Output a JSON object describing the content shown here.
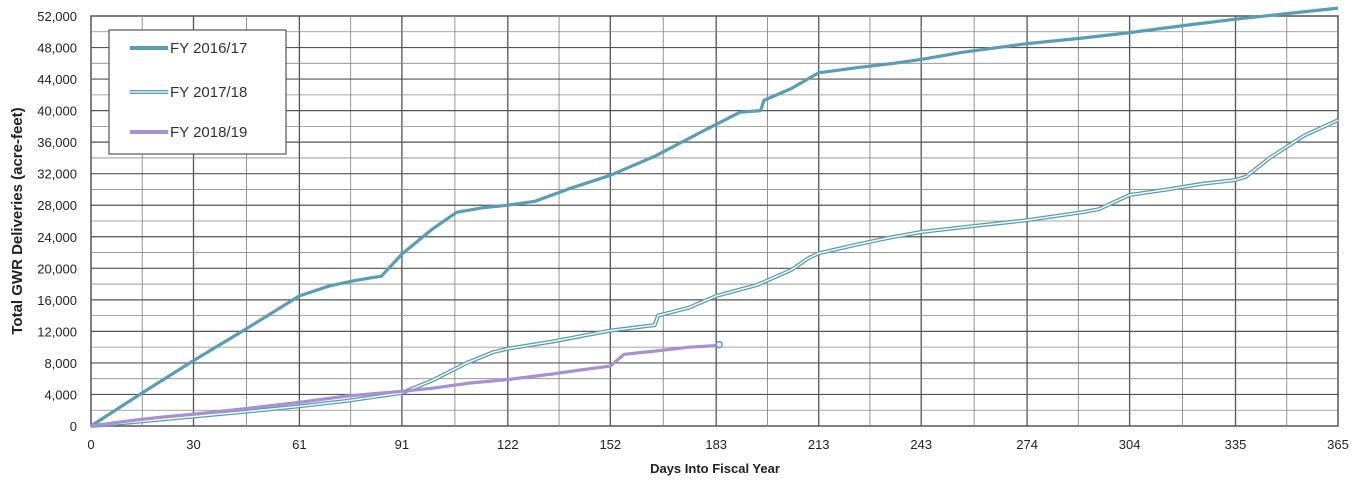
{
  "chart_data": {
    "type": "line",
    "xlabel": "Days Into Fiscal Year",
    "ylabel": "Total GWR Deliveries (acre-feet)",
    "x_ticks": [
      0,
      30,
      61,
      91,
      122,
      152,
      183,
      213,
      243,
      274,
      304,
      335,
      365
    ],
    "y_ticks": [
      0,
      4000,
      8000,
      12000,
      16000,
      20000,
      24000,
      28000,
      32000,
      36000,
      40000,
      44000,
      48000,
      52000
    ],
    "y_tick_labels": [
      "0",
      "4,000",
      "8,000",
      "12,000",
      "16,000",
      "20,000",
      "24,000",
      "28,000",
      "32,000",
      "36,000",
      "40,000",
      "44,000",
      "48,000",
      "52,000"
    ],
    "xlim": [
      0,
      365
    ],
    "ylim": [
      0,
      52000
    ],
    "grid": true,
    "legend_placement": "top-left",
    "series": [
      {
        "name": "FY 2016/17",
        "color": "#5b9db3",
        "style": "solid",
        "x": [
          0,
          15,
          30,
          45,
          61,
          70,
          78,
          85,
          91,
          100,
          107,
          115,
          122,
          130,
          140,
          152,
          165,
          180,
          190,
          196,
          197,
          205,
          213,
          225,
          235,
          243,
          255,
          274,
          290,
          304,
          320,
          335,
          350,
          365
        ],
        "y": [
          0,
          4200,
          8300,
          12200,
          16500,
          17800,
          18500,
          19000,
          21800,
          25000,
          27100,
          27700,
          28000,
          28500,
          30100,
          31800,
          34200,
          37600,
          39800,
          40000,
          41300,
          42800,
          44800,
          45500,
          46000,
          46500,
          47400,
          48500,
          49200,
          49900,
          50800,
          51600,
          52300,
          53000
        ]
      },
      {
        "name": "FY 2017/18",
        "color": "#5b9db3",
        "style": "double",
        "x": [
          0,
          15,
          30,
          45,
          61,
          75,
          91,
          100,
          110,
          118,
          122,
          135,
          152,
          165,
          166,
          175,
          183,
          195,
          205,
          210,
          213,
          225,
          235,
          243,
          255,
          274,
          290,
          295,
          304,
          315,
          325,
          335,
          338,
          345,
          355,
          365
        ],
        "y": [
          0,
          600,
          1200,
          1800,
          2500,
          3200,
          4200,
          5800,
          8000,
          9400,
          9800,
          10700,
          12100,
          12800,
          14000,
          15000,
          16500,
          17900,
          19800,
          21300,
          21900,
          23100,
          24000,
          24600,
          25200,
          26100,
          27100,
          27500,
          29300,
          30000,
          30700,
          31200,
          31600,
          34000,
          36800,
          38800
        ]
      },
      {
        "name": "FY 2018/19",
        "color": "#a98fd3",
        "style": "solid",
        "x": [
          0,
          10,
          20,
          30,
          45,
          61,
          75,
          91,
          100,
          110,
          122,
          135,
          145,
          152,
          156,
          165,
          175,
          183
        ],
        "y": [
          0,
          600,
          1100,
          1500,
          2200,
          3000,
          3800,
          4400,
          4800,
          5400,
          5900,
          6600,
          7200,
          7600,
          9100,
          9500,
          10000,
          10200
        ]
      }
    ]
  }
}
